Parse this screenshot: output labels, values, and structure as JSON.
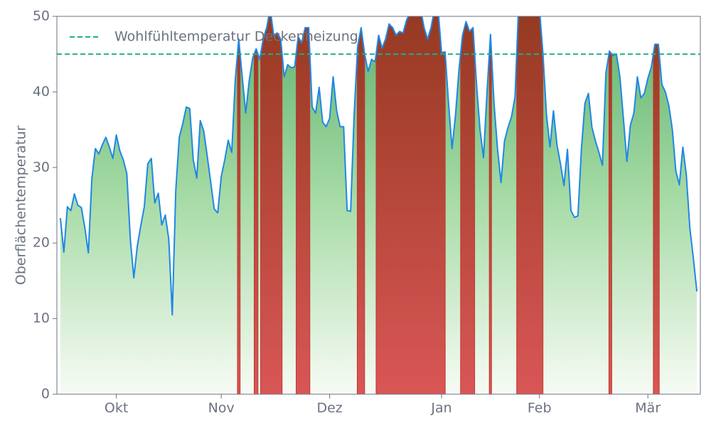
{
  "chart_data": {
    "type": "area",
    "ylabel": "Oberflächentemperatur",
    "x": [
      1,
      2,
      3,
      4,
      5,
      6,
      7,
      8,
      9,
      10,
      11,
      12,
      13,
      14,
      15,
      16,
      17,
      18,
      19,
      20,
      21,
      22,
      23,
      24,
      25,
      26,
      27,
      28,
      29,
      30,
      31,
      32,
      33,
      34,
      35,
      36,
      37,
      38,
      39,
      40,
      41,
      42,
      43,
      44,
      45,
      46,
      47,
      48,
      49,
      50,
      51,
      52,
      53,
      54,
      55,
      56,
      57,
      58,
      59,
      60,
      61,
      62,
      63,
      64,
      65,
      66,
      67,
      68,
      69,
      70,
      71,
      72,
      73,
      74,
      75,
      76,
      77,
      78,
      79,
      80,
      81,
      82,
      83,
      84,
      85,
      86,
      87,
      88,
      89,
      90,
      91,
      92,
      93,
      94,
      95,
      96,
      97,
      98,
      99,
      100,
      101,
      102,
      103,
      104,
      105,
      106,
      107,
      108,
      109,
      110,
      111,
      112,
      113,
      114,
      115,
      116,
      117,
      118,
      119,
      120,
      121,
      122,
      123,
      124,
      125,
      126,
      127,
      128,
      129,
      130,
      131,
      132,
      133,
      134,
      135,
      136,
      137,
      138,
      139,
      140,
      141,
      142,
      143,
      144,
      145,
      146,
      147,
      148,
      149,
      150,
      151,
      152,
      153,
      154,
      155,
      156,
      157,
      158,
      159,
      160,
      161,
      162,
      163,
      164,
      165,
      166,
      167,
      168,
      169,
      170,
      171,
      172,
      173,
      174,
      175,
      176,
      177,
      178,
      179,
      180,
      181,
      182,
      183
    ],
    "series": [
      {
        "color": "#1e88e5",
        "values": [
          23.3,
          18.8,
          24.8,
          24.3,
          26.5,
          25,
          24.7,
          22,
          18.7,
          28.5,
          32.5,
          31.8,
          33,
          34,
          32.7,
          31.2,
          34.3,
          32.2,
          31,
          29.2,
          20.5,
          15.4,
          19.6,
          22.3,
          24.8,
          30.5,
          31.2,
          25.3,
          26.6,
          22.4,
          23.7,
          20.5,
          10.5,
          27,
          34,
          35.8,
          38,
          37.8,
          31,
          28.6,
          36.2,
          34.8,
          31.5,
          28,
          24.5,
          24,
          28.8,
          31,
          33.6,
          32,
          41.5,
          47,
          42,
          37.2,
          41.5,
          44.5,
          45.7,
          44.3,
          47,
          48.5,
          51,
          47.5,
          47.8,
          47,
          42,
          43.6,
          43.2,
          43.3,
          47.3,
          46.5,
          48.5,
          48.5,
          38,
          37.2,
          40.6,
          36,
          35.4,
          36.5,
          42,
          37.5,
          35.4,
          35.4,
          24.3,
          24.2,
          37,
          46,
          48.5,
          45,
          42.7,
          44.3,
          44,
          47.5,
          45.8,
          47,
          49,
          48.5,
          47.5,
          48,
          47.8,
          49.5,
          50.5,
          51,
          51,
          51,
          48.5,
          47,
          48.5,
          51,
          51,
          45.2,
          45.3,
          38.5,
          32.5,
          37,
          43,
          47.5,
          49.3,
          48,
          48.5,
          41,
          35,
          31.3,
          40,
          47.6,
          38.5,
          32.5,
          28,
          33.5,
          35.3,
          36.7,
          39.3,
          51,
          51,
          51,
          51,
          51,
          51,
          51,
          45,
          37,
          32.7,
          37.5,
          33,
          30.5,
          27.6,
          32.4,
          24.3,
          23.4,
          23.6,
          32.5,
          38.5,
          39.8,
          35.3,
          33.5,
          32,
          30.3,
          42.5,
          45.4,
          44.8,
          45,
          42,
          36.5,
          30.8,
          35.6,
          37.2,
          42,
          39.2,
          39.8,
          41.8,
          43.3,
          46.3,
          46.3,
          41,
          40,
          38.2,
          35,
          29.5,
          27.7,
          32.7,
          29,
          22,
          18,
          13.6
        ]
      }
    ],
    "threshold": {
      "name": "Wohlfühltemperatur Deckenheizung",
      "value": 45,
      "color": "#1aaf8b"
    },
    "xlim": [
      0,
      184
    ],
    "xticks": [
      {
        "value": 17,
        "label": "Okt"
      },
      {
        "value": 47,
        "label": "Nov"
      },
      {
        "value": 78,
        "label": "Dez"
      },
      {
        "value": 110,
        "label": "Jan"
      },
      {
        "value": 138,
        "label": "Feb"
      },
      {
        "value": 169,
        "label": "Mär"
      }
    ],
    "ylim": [
      0,
      50
    ],
    "yticks": [
      0,
      10,
      20,
      30,
      40,
      50
    ],
    "legend": "upper left"
  }
}
